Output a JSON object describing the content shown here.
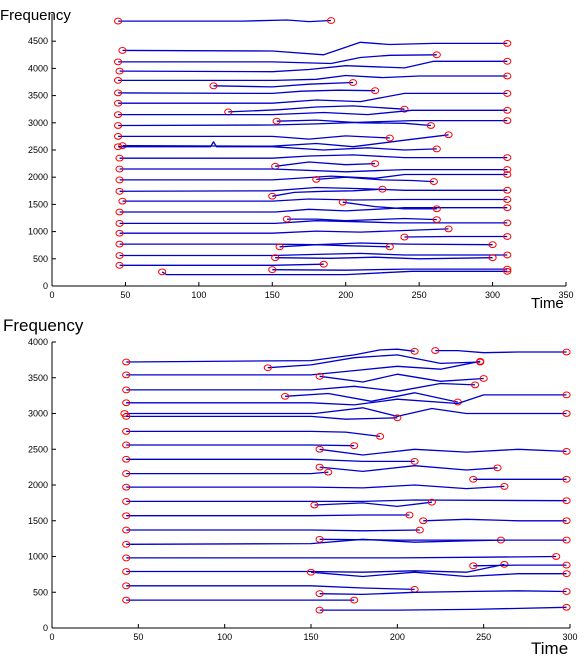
{
  "chart_data": [
    {
      "type": "line",
      "title": "",
      "ylabel": "Frequency",
      "xlabel": "Time",
      "xlim": [
        0,
        350
      ],
      "ylim": [
        0,
        5000
      ],
      "xticks": [
        0,
        50,
        100,
        150,
        200,
        250,
        300,
        350
      ],
      "yticks": [
        0,
        500,
        1000,
        1500,
        2000,
        2500,
        3000,
        3500,
        4000,
        4500
      ],
      "grid": false,
      "legend": "none",
      "line_color": "#0000cc",
      "marker_color": "#ff0000",
      "marker": "open-circle",
      "series": [
        {
          "x": [
            45,
            130,
            160,
            175,
            190
          ],
          "y": [
            4870,
            4870,
            4890,
            4860,
            4880
          ]
        },
        {
          "x": [
            48,
            150,
            185,
            210,
            230,
            260,
            310
          ],
          "y": [
            4330,
            4320,
            4250,
            4480,
            4440,
            4460,
            4460
          ]
        },
        {
          "x": [
            45,
            150,
            190,
            210,
            230,
            262
          ],
          "y": [
            4120,
            4120,
            4090,
            4200,
            4240,
            4250
          ]
        },
        {
          "x": [
            46,
            150,
            175,
            200,
            240,
            260,
            310
          ],
          "y": [
            3950,
            3940,
            3980,
            4050,
            4010,
            4130,
            4130
          ]
        },
        {
          "x": [
            45,
            152,
            180,
            200,
            225,
            250,
            310
          ],
          "y": [
            3780,
            3780,
            3800,
            3870,
            3830,
            3860,
            3860
          ]
        },
        {
          "x": [
            110,
            150,
            175,
            205
          ],
          "y": [
            3680,
            3660,
            3710,
            3740
          ]
        },
        {
          "x": [
            45,
            150,
            170,
            195,
            220
          ],
          "y": [
            3550,
            3540,
            3580,
            3600,
            3590
          ]
        },
        {
          "x": [
            45,
            150,
            180,
            210,
            240,
            310
          ],
          "y": [
            3360,
            3360,
            3420,
            3390,
            3540,
            3540
          ]
        },
        {
          "x": [
            120,
            155,
            180,
            205,
            240
          ],
          "y": [
            3200,
            3240,
            3290,
            3310,
            3250
          ]
        },
        {
          "x": [
            45,
            150,
            185,
            215,
            245,
            310
          ],
          "y": [
            3150,
            3150,
            3190,
            3150,
            3230,
            3230
          ]
        },
        {
          "x": [
            45,
            150,
            180,
            210,
            245,
            310
          ],
          "y": [
            2950,
            2960,
            2980,
            3010,
            3040,
            3040
          ]
        },
        {
          "x": [
            153,
            180,
            210,
            240,
            258
          ],
          "y": [
            3030,
            3050,
            3000,
            2990,
            2950
          ]
        },
        {
          "x": [
            45,
            150,
            175,
            200,
            230
          ],
          "y": [
            2750,
            2750,
            2700,
            2760,
            2720
          ]
        },
        {
          "x": [
            48,
            150,
            180,
            205,
            240,
            270
          ],
          "y": [
            2580,
            2570,
            2620,
            2560,
            2680,
            2780
          ]
        },
        {
          "x": [
            45,
            108,
            110,
            112,
            150,
            185,
            215,
            240,
            262
          ],
          "y": [
            2560,
            2560,
            2650,
            2560,
            2560,
            2500,
            2540,
            2500,
            2520
          ]
        },
        {
          "x": [
            46,
            150,
            175,
            205,
            240,
            310
          ],
          "y": [
            2350,
            2350,
            2390,
            2410,
            2360,
            2360
          ]
        },
        {
          "x": [
            152,
            175,
            200,
            220
          ],
          "y": [
            2200,
            2280,
            2230,
            2250
          ]
        },
        {
          "x": [
            46,
            150,
            200,
            240,
            310
          ],
          "y": [
            2150,
            2150,
            2100,
            2140,
            2140
          ]
        },
        {
          "x": [
            46,
            150,
            190,
            220,
            240,
            310
          ],
          "y": [
            1950,
            1950,
            2020,
            1980,
            2050,
            2050
          ]
        },
        {
          "x": [
            180,
            200,
            225,
            245,
            260
          ],
          "y": [
            1960,
            2000,
            1950,
            1940,
            1920
          ]
        },
        {
          "x": [
            46,
            150,
            180,
            210,
            240,
            310
          ],
          "y": [
            1740,
            1750,
            1810,
            1790,
            1760,
            1760
          ]
        },
        {
          "x": [
            150,
            165,
            185,
            205,
            225
          ],
          "y": [
            1650,
            1720,
            1740,
            1750,
            1780
          ]
        },
        {
          "x": [
            48,
            150,
            175,
            205,
            240,
            310
          ],
          "y": [
            1560,
            1560,
            1600,
            1580,
            1590,
            1590
          ]
        },
        {
          "x": [
            46,
            152,
            175,
            200,
            240,
            310
          ],
          "y": [
            1360,
            1360,
            1410,
            1380,
            1440,
            1440
          ]
        },
        {
          "x": [
            198,
            220,
            240,
            262
          ],
          "y": [
            1540,
            1460,
            1420,
            1420
          ]
        },
        {
          "x": [
            46,
            152,
            180,
            210,
            235,
            310
          ],
          "y": [
            1150,
            1150,
            1200,
            1180,
            1160,
            1160
          ]
        },
        {
          "x": [
            160,
            180,
            200,
            220,
            240,
            262
          ],
          "y": [
            1230,
            1230,
            1200,
            1220,
            1240,
            1220
          ]
        },
        {
          "x": [
            46,
            150,
            180,
            210,
            240,
            270
          ],
          "y": [
            970,
            970,
            1010,
            990,
            1020,
            1050
          ]
        },
        {
          "x": [
            240,
            270,
            310
          ],
          "y": [
            900,
            910,
            910
          ]
        },
        {
          "x": [
            46,
            150,
            180,
            210,
            240,
            300
          ],
          "y": [
            770,
            770,
            760,
            790,
            770,
            760
          ]
        },
        {
          "x": [
            155,
            180,
            200,
            230
          ],
          "y": [
            720,
            760,
            740,
            720
          ]
        },
        {
          "x": [
            46,
            150,
            180,
            210,
            240,
            310
          ],
          "y": [
            560,
            560,
            580,
            600,
            570,
            570
          ]
        },
        {
          "x": [
            152,
            190,
            220,
            250,
            300
          ],
          "y": [
            520,
            510,
            530,
            500,
            520
          ]
        },
        {
          "x": [
            46,
            150,
            185
          ],
          "y": [
            380,
            380,
            400
          ]
        },
        {
          "x": [
            150,
            200,
            240,
            310
          ],
          "y": [
            300,
            290,
            310,
            310
          ]
        },
        {
          "x": [
            75,
            78,
            150,
            200,
            245,
            310
          ],
          "y": [
            260,
            210,
            210,
            210,
            270,
            270
          ]
        }
      ]
    },
    {
      "type": "line",
      "title": "",
      "ylabel": "Frequency",
      "xlabel": "Time",
      "xlim": [
        0,
        300
      ],
      "ylim": [
        0,
        4000
      ],
      "xticks": [
        0,
        50,
        100,
        150,
        200,
        250,
        300
      ],
      "yticks": [
        0,
        500,
        1000,
        1500,
        2000,
        2500,
        3000,
        3500,
        4000
      ],
      "grid": false,
      "legend": "none",
      "line_color": "#0000cc",
      "marker_color": "#ff0000",
      "marker": "open-circle",
      "series": [
        {
          "x": [
            43,
            150,
            175,
            190,
            200,
            210
          ],
          "y": [
            3720,
            3740,
            3820,
            3890,
            3900,
            3870
          ]
        },
        {
          "x": [
            222,
            235,
            250,
            270,
            298
          ],
          "y": [
            3880,
            3880,
            3850,
            3860,
            3860
          ]
        },
        {
          "x": [
            125,
            150,
            175,
            200,
            225,
            248
          ],
          "y": [
            3640,
            3680,
            3780,
            3820,
            3700,
            3720
          ]
        },
        {
          "x": [
            43,
            150,
            175,
            200,
            225,
            248
          ],
          "y": [
            3540,
            3540,
            3600,
            3660,
            3620,
            3730
          ]
        },
        {
          "x": [
            155,
            180,
            200,
            225,
            250
          ],
          "y": [
            3520,
            3440,
            3550,
            3450,
            3490
          ]
        },
        {
          "x": [
            43,
            150,
            175,
            200,
            225,
            245
          ],
          "y": [
            3330,
            3330,
            3380,
            3310,
            3420,
            3400
          ]
        },
        {
          "x": [
            135,
            160,
            185,
            210,
            235
          ],
          "y": [
            3240,
            3280,
            3170,
            3290,
            3160
          ]
        },
        {
          "x": [
            43,
            150,
            175,
            200,
            235,
            250,
            298
          ],
          "y": [
            3150,
            3150,
            3120,
            3200,
            3140,
            3260,
            3260
          ]
        },
        {
          "x": [
            42,
            152,
            180,
            200,
            220,
            240,
            298
          ],
          "y": [
            3000,
            3000,
            3080,
            2960,
            3070,
            3000,
            3000
          ]
        },
        {
          "x": [
            43,
            70,
            150,
            170,
            200
          ],
          "y": [
            2960,
            2960,
            2960,
            2920,
            2940
          ]
        },
        {
          "x": [
            43,
            150,
            170,
            190
          ],
          "y": [
            2750,
            2750,
            2740,
            2680
          ]
        },
        {
          "x": [
            43,
            150,
            175
          ],
          "y": [
            2560,
            2560,
            2550
          ]
        },
        {
          "x": [
            155,
            180,
            210,
            240,
            270,
            298
          ],
          "y": [
            2500,
            2420,
            2500,
            2460,
            2500,
            2470
          ]
        },
        {
          "x": [
            43,
            150,
            180,
            210
          ],
          "y": [
            2360,
            2360,
            2330,
            2330
          ]
        },
        {
          "x": [
            155,
            180,
            210,
            240,
            258
          ],
          "y": [
            2250,
            2190,
            2270,
            2210,
            2240
          ]
        },
        {
          "x": [
            43,
            150,
            160
          ],
          "y": [
            2160,
            2160,
            2180
          ]
        },
        {
          "x": [
            43,
            150,
            180,
            210,
            240,
            262
          ],
          "y": [
            1970,
            1970,
            1960,
            2000,
            1950,
            1980
          ]
        },
        {
          "x": [
            244,
            270,
            298
          ],
          "y": [
            2080,
            2080,
            2080
          ]
        },
        {
          "x": [
            43,
            150,
            180,
            210,
            298
          ],
          "y": [
            1770,
            1770,
            1770,
            1790,
            1780
          ]
        },
        {
          "x": [
            152,
            180,
            200,
            220
          ],
          "y": [
            1720,
            1750,
            1700,
            1760
          ]
        },
        {
          "x": [
            43,
            150,
            180,
            207
          ],
          "y": [
            1570,
            1570,
            1580,
            1580
          ]
        },
        {
          "x": [
            215,
            240,
            270,
            298
          ],
          "y": [
            1500,
            1520,
            1500,
            1500
          ]
        },
        {
          "x": [
            43,
            150,
            180,
            213
          ],
          "y": [
            1370,
            1370,
            1360,
            1370
          ]
        },
        {
          "x": [
            43,
            150,
            180,
            210,
            240,
            260
          ],
          "y": [
            1170,
            1180,
            1240,
            1200,
            1220,
            1230
          ]
        },
        {
          "x": [
            155,
            200,
            250,
            298
          ],
          "y": [
            1240,
            1230,
            1230,
            1230
          ]
        },
        {
          "x": [
            43,
            150,
            200,
            250,
            292
          ],
          "y": [
            980,
            980,
            980,
            990,
            1000
          ]
        },
        {
          "x": [
            43,
            150,
            180,
            210,
            240,
            262
          ],
          "y": [
            790,
            790,
            780,
            800,
            780,
            890
          ]
        },
        {
          "x": [
            244,
            270,
            298
          ],
          "y": [
            870,
            880,
            880
          ]
        },
        {
          "x": [
            150,
            160,
            180,
            210,
            240,
            270,
            298
          ],
          "y": [
            780,
            760,
            720,
            780,
            720,
            760,
            760
          ]
        },
        {
          "x": [
            43,
            150,
            180,
            210
          ],
          "y": [
            590,
            590,
            560,
            540
          ]
        },
        {
          "x": [
            155,
            180,
            210,
            240,
            270,
            298
          ],
          "y": [
            480,
            470,
            500,
            510,
            520,
            510
          ]
        },
        {
          "x": [
            43,
            150,
            175
          ],
          "y": [
            390,
            390,
            390
          ]
        },
        {
          "x": [
            155,
            200,
            243,
            298
          ],
          "y": [
            250,
            250,
            260,
            290
          ]
        }
      ]
    }
  ]
}
